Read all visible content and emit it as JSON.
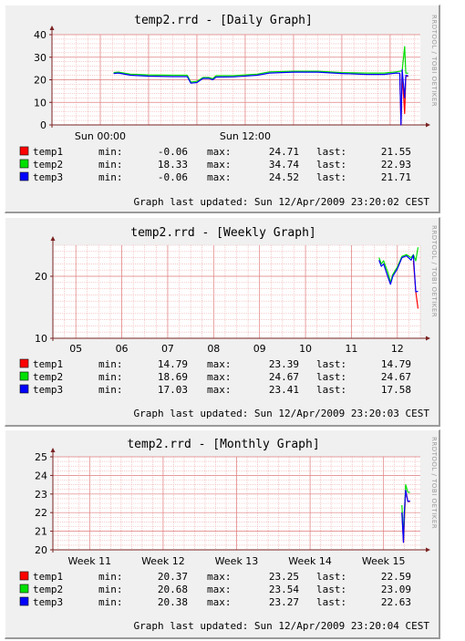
{
  "watermark": "RRDTOOL / TOBI OETIKER",
  "colors": {
    "temp1": "#ff0000",
    "temp2": "#00e000",
    "temp3": "#0000ff",
    "grid_minor": "#f0a8a8",
    "grid_major": "#e08080",
    "axis": "#7a2222"
  },
  "legend_labels": {
    "min": "min:",
    "max": "max:",
    "last": "last:"
  },
  "chart_data": [
    {
      "type": "line",
      "title": "temp2.rrd - [Daily Graph]",
      "ylim": [
        0,
        40
      ],
      "yticks": [
        0,
        10,
        20,
        30,
        40
      ],
      "xlim": [
        0,
        30.5
      ],
      "xtick_labels": [
        {
          "x": 4,
          "label": "Sun 00:00"
        },
        {
          "x": 16,
          "label": "Sun 12:00"
        }
      ],
      "grid": true,
      "series": [
        {
          "name": "temp1",
          "color": "#ff0000",
          "points": [
            [
              28.8,
              22.8
            ],
            [
              28.9,
              0
            ],
            [
              29.0,
              23.5
            ],
            [
              29.2,
              5
            ],
            [
              29.3,
              21.6
            ],
            [
              29.5,
              21.55
            ]
          ]
        },
        {
          "name": "temp2",
          "color": "#00e000",
          "points": [
            [
              5.1,
              23.2
            ],
            [
              5.5,
              23.4
            ],
            [
              6.5,
              22.5
            ],
            [
              8,
              22.2
            ],
            [
              10,
              22.0
            ],
            [
              11.2,
              22.0
            ],
            [
              11.5,
              19.0
            ],
            [
              12,
              19.3
            ],
            [
              12.5,
              21.0
            ],
            [
              13,
              21.0
            ],
            [
              13.3,
              20.5
            ],
            [
              13.6,
              21.8
            ],
            [
              15,
              21.8
            ],
            [
              17,
              22.5
            ],
            [
              18,
              23.5
            ],
            [
              20,
              23.8
            ],
            [
              22,
              23.8
            ],
            [
              24,
              23.2
            ],
            [
              26,
              23.0
            ],
            [
              27.5,
              23.0
            ],
            [
              28.5,
              23.5
            ],
            [
              29.0,
              24.0
            ],
            [
              29.2,
              34.7
            ],
            [
              29.3,
              22.9
            ],
            [
              29.5,
              22.93
            ]
          ]
        },
        {
          "name": "temp3",
          "color": "#0000ff",
          "points": [
            [
              5.1,
              22.8
            ],
            [
              5.5,
              23.0
            ],
            [
              6.5,
              22.0
            ],
            [
              8,
              21.6
            ],
            [
              10,
              21.4
            ],
            [
              11.2,
              21.4
            ],
            [
              11.5,
              18.5
            ],
            [
              12,
              18.8
            ],
            [
              12.5,
              20.6
            ],
            [
              13,
              20.6
            ],
            [
              13.3,
              20.0
            ],
            [
              13.6,
              21.2
            ],
            [
              15,
              21.3
            ],
            [
              17,
              22.0
            ],
            [
              18,
              23.0
            ],
            [
              20,
              23.4
            ],
            [
              22,
              23.4
            ],
            [
              24,
              22.8
            ],
            [
              26,
              22.4
            ],
            [
              27.5,
              22.4
            ],
            [
              28.5,
              23.0
            ],
            [
              28.8,
              22.9
            ],
            [
              28.9,
              0
            ],
            [
              29.0,
              24.5
            ],
            [
              29.2,
              12.0
            ],
            [
              29.3,
              22.0
            ],
            [
              29.5,
              21.71
            ]
          ]
        }
      ],
      "stats": [
        {
          "name": "temp1",
          "min": "-0.06",
          "max": "24.71",
          "last": "21.55"
        },
        {
          "name": "temp2",
          "min": "18.33",
          "max": "34.74",
          "last": "22.93"
        },
        {
          "name": "temp3",
          "min": "-0.06",
          "max": "24.52",
          "last": "21.71"
        }
      ],
      "updated": "Graph last updated: Sun 12/Apr/2009 23:20:02 CEST"
    },
    {
      "type": "line",
      "title": "temp2.rrd - [Weekly Graph]",
      "ylim": [
        10,
        25
      ],
      "yticks": [
        10,
        20
      ],
      "xlim": [
        4.5,
        12.5
      ],
      "xtick_labels": [
        {
          "x": 5,
          "label": "05"
        },
        {
          "x": 6,
          "label": "06"
        },
        {
          "x": 7,
          "label": "07"
        },
        {
          "x": 8,
          "label": "08"
        },
        {
          "x": 9,
          "label": "09"
        },
        {
          "x": 10,
          "label": "10"
        },
        {
          "x": 11,
          "label": "11"
        },
        {
          "x": 12,
          "label": "12"
        }
      ],
      "grid": true,
      "series": [
        {
          "name": "temp1",
          "color": "#ff0000",
          "points": [
            [
              12.35,
              22.5
            ],
            [
              12.4,
              17.5
            ],
            [
              12.45,
              14.79
            ]
          ]
        },
        {
          "name": "temp2",
          "color": "#00e000",
          "points": [
            [
              11.6,
              23.0
            ],
            [
              11.65,
              22.0
            ],
            [
              11.7,
              22.5
            ],
            [
              11.8,
              20.5
            ],
            [
              11.85,
              19.0
            ],
            [
              11.9,
              20.3
            ],
            [
              12.0,
              21.5
            ],
            [
              12.1,
              23.2
            ],
            [
              12.2,
              23.5
            ],
            [
              12.3,
              23.0
            ],
            [
              12.35,
              23.5
            ],
            [
              12.4,
              22.5
            ],
            [
              12.45,
              24.67
            ]
          ]
        },
        {
          "name": "temp3",
          "color": "#0000ff",
          "points": [
            [
              11.6,
              22.6
            ],
            [
              11.65,
              21.6
            ],
            [
              11.7,
              22.0
            ],
            [
              11.8,
              19.8
            ],
            [
              11.85,
              18.7
            ],
            [
              11.9,
              20.0
            ],
            [
              12.0,
              21.2
            ],
            [
              12.1,
              23.0
            ],
            [
              12.2,
              23.3
            ],
            [
              12.3,
              22.6
            ],
            [
              12.35,
              23.4
            ],
            [
              12.4,
              17.5
            ],
            [
              12.45,
              17.58
            ]
          ]
        }
      ],
      "stats": [
        {
          "name": "temp1",
          "min": "14.79",
          "max": "23.39",
          "last": "14.79"
        },
        {
          "name": "temp2",
          "min": "18.69",
          "max": "24.67",
          "last": "24.67"
        },
        {
          "name": "temp3",
          "min": "17.03",
          "max": "23.41",
          "last": "17.58"
        }
      ],
      "updated": "Graph last updated: Sun 12/Apr/2009 23:20:03 CEST"
    },
    {
      "type": "line",
      "title": "temp2.rrd - [Monthly Graph]",
      "ylim": [
        20,
        25
      ],
      "yticks": [
        20,
        21,
        22,
        23,
        24,
        25
      ],
      "xlim": [
        10.5,
        15.5
      ],
      "xtick_labels": [
        {
          "x": 11,
          "label": "Week 11"
        },
        {
          "x": 12,
          "label": "Week 12"
        },
        {
          "x": 13,
          "label": "Week 13"
        },
        {
          "x": 14,
          "label": "Week 14"
        },
        {
          "x": 15,
          "label": "Week 15"
        }
      ],
      "grid": true,
      "series": [
        {
          "name": "temp1",
          "color": "#ff0000",
          "points": [
            [
              15.25,
              22.0
            ],
            [
              15.27,
              20.4
            ],
            [
              15.3,
              23.2
            ],
            [
              15.33,
              22.6
            ],
            [
              15.36,
              22.59
            ]
          ]
        },
        {
          "name": "temp2",
          "color": "#00e000",
          "points": [
            [
              15.25,
              22.4
            ],
            [
              15.27,
              20.7
            ],
            [
              15.3,
              23.5
            ],
            [
              15.33,
              23.1
            ],
            [
              15.36,
              23.09
            ]
          ]
        },
        {
          "name": "temp3",
          "color": "#0000ff",
          "points": [
            [
              15.25,
              22.0
            ],
            [
              15.27,
              20.4
            ],
            [
              15.28,
              21.9
            ],
            [
              15.3,
              23.2
            ],
            [
              15.33,
              22.6
            ],
            [
              15.36,
              22.63
            ]
          ]
        }
      ],
      "stats": [
        {
          "name": "temp1",
          "min": "20.37",
          "max": "23.25",
          "last": "22.59"
        },
        {
          "name": "temp2",
          "min": "20.68",
          "max": "23.54",
          "last": "23.09"
        },
        {
          "name": "temp3",
          "min": "20.38",
          "max": "23.27",
          "last": "22.63"
        }
      ],
      "updated": "Graph last updated: Sun 12/Apr/2009 23:20:04 CEST"
    }
  ]
}
